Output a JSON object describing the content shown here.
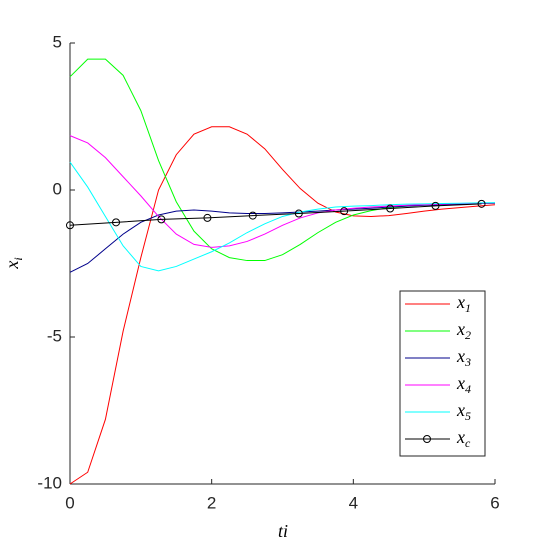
{
  "chart_data": {
    "type": "line",
    "xlabel": "ti",
    "ylabel": "xi",
    "xlim": [
      0,
      6
    ],
    "ylim": [
      -10,
      5
    ],
    "xticks": [
      0,
      2,
      4,
      6
    ],
    "yticks": [
      -10,
      -5,
      0,
      5
    ],
    "grid": false,
    "legend": "lower right",
    "x": [
      0,
      0.25,
      0.5,
      0.75,
      1,
      1.25,
      1.5,
      1.75,
      2,
      2.25,
      2.5,
      2.75,
      3,
      3.25,
      3.5,
      3.75,
      4,
      4.25,
      4.5,
      4.75,
      5,
      5.25,
      5.5,
      5.75,
      6
    ],
    "series": [
      {
        "name": "x1",
        "color": "#ff0000",
        "values": [
          -10,
          -9.6,
          -7.8,
          -4.8,
          -2.3,
          0.0,
          1.2,
          1.9,
          2.15,
          2.15,
          1.9,
          1.4,
          0.7,
          0.05,
          -0.45,
          -0.75,
          -0.88,
          -0.9,
          -0.87,
          -0.8,
          -0.72,
          -0.65,
          -0.6,
          -0.55,
          -0.5
        ]
      },
      {
        "name": "x2",
        "color": "#00ff00",
        "values": [
          3.85,
          4.45,
          4.45,
          3.9,
          2.7,
          1.0,
          -0.4,
          -1.4,
          -2.0,
          -2.3,
          -2.4,
          -2.4,
          -2.2,
          -1.85,
          -1.45,
          -1.1,
          -0.85,
          -0.7,
          -0.6,
          -0.55,
          -0.52,
          -0.5,
          -0.48,
          -0.46,
          -0.45
        ]
      },
      {
        "name": "x3",
        "color": "#00008b",
        "values": [
          -2.8,
          -2.5,
          -2.0,
          -1.5,
          -1.1,
          -0.85,
          -0.72,
          -0.68,
          -0.72,
          -0.78,
          -0.8,
          -0.8,
          -0.78,
          -0.75,
          -0.72,
          -0.68,
          -0.65,
          -0.62,
          -0.58,
          -0.55,
          -0.52,
          -0.5,
          -0.48,
          -0.46,
          -0.45
        ]
      },
      {
        "name": "x4",
        "color": "#ff00ff",
        "values": [
          1.85,
          1.6,
          1.1,
          0.45,
          -0.2,
          -0.9,
          -1.5,
          -1.85,
          -1.95,
          -1.9,
          -1.75,
          -1.5,
          -1.2,
          -0.95,
          -0.78,
          -0.68,
          -0.62,
          -0.58,
          -0.55,
          -0.52,
          -0.5,
          -0.48,
          -0.46,
          -0.45,
          -0.44
        ]
      },
      {
        "name": "x5",
        "color": "#00ffff",
        "values": [
          0.95,
          0.1,
          -0.9,
          -1.9,
          -2.6,
          -2.75,
          -2.6,
          -2.35,
          -2.1,
          -1.8,
          -1.45,
          -1.15,
          -0.9,
          -0.75,
          -0.65,
          -0.58,
          -0.55,
          -0.53,
          -0.5,
          -0.48,
          -0.47,
          -0.46,
          -0.45,
          -0.44,
          -0.43
        ]
      },
      {
        "name": "xc",
        "color": "#000000",
        "marker": "circle",
        "x": [
          0,
          0.65,
          1.29,
          1.94,
          2.58,
          3.23,
          3.87,
          4.52,
          5.16,
          5.81
        ],
        "values": [
          -1.2,
          -1.1,
          -1.0,
          -0.95,
          -0.87,
          -0.8,
          -0.72,
          -0.63,
          -0.54,
          -0.47
        ]
      }
    ]
  }
}
